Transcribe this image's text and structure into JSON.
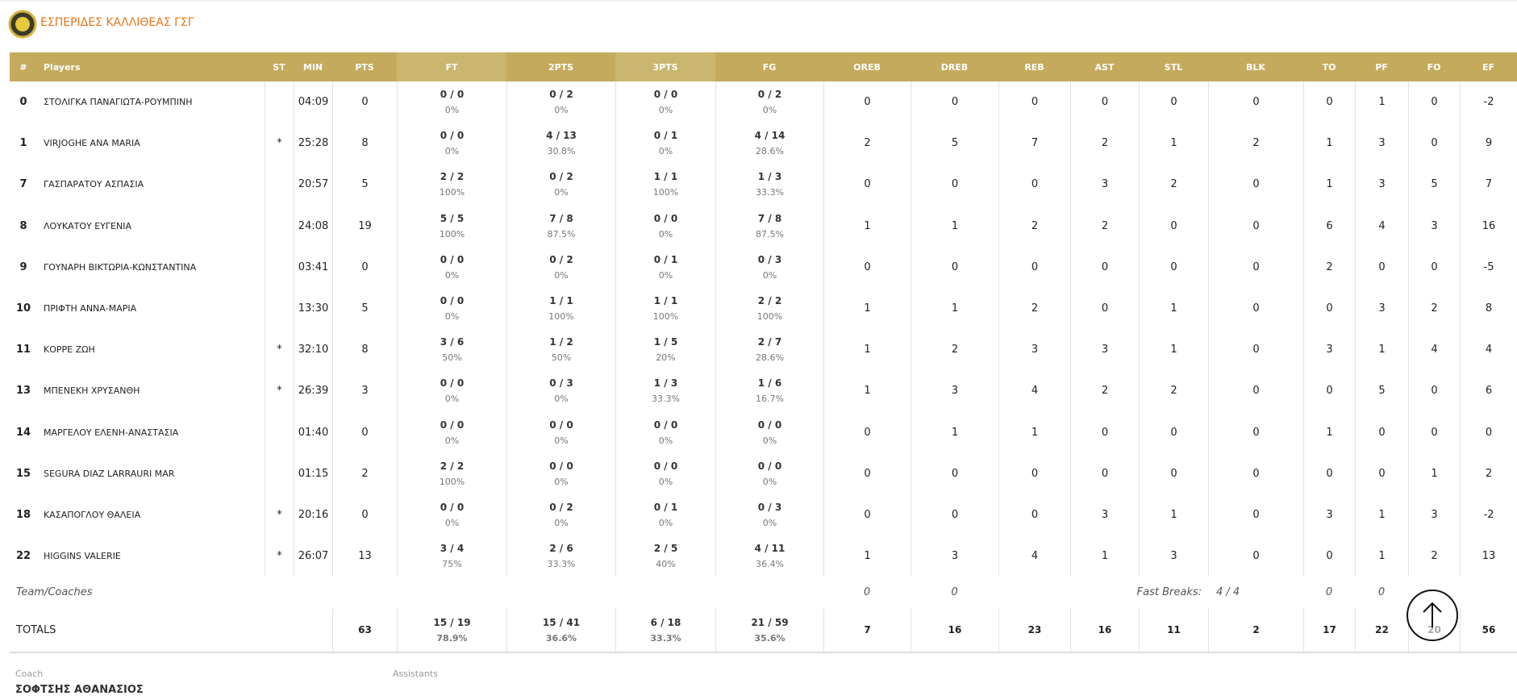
{
  "team": "ΕΣΠΕΡΙΔΕΣ ΚΑΛΛΙΘΕΑΣ ΓΣΓ",
  "table": {
    "header": [
      "#",
      "Players",
      "ST",
      "MIN",
      "PTS",
      "FT",
      "2PTS",
      "3PTS",
      "FG",
      "OREB",
      "DREB",
      "REB",
      "AST",
      "STL",
      "BLK",
      "TO",
      "PF",
      "FO",
      "EF"
    ],
    "rows": [
      [
        0,
        "ΣΤΟΛΙΓΚΑ ΠΑΝΑΓΙΩΤΑ-ΡΟΥΜΠΙΝΗ",
        null,
        "04:09",
        0,
        [
          "0 / 0",
          "0%"
        ],
        [
          "0 / 2",
          "0%"
        ],
        [
          "0 / 0",
          "0%"
        ],
        [
          "0 / 2",
          "0%"
        ],
        0,
        0,
        0,
        0,
        0,
        0,
        0,
        1,
        0,
        -2
      ],
      [
        1,
        "VIRJOGHE ANA MARIA",
        "*",
        "25:28",
        8,
        [
          "0 / 0",
          "0%"
        ],
        [
          "4 / 13",
          "30.8%"
        ],
        [
          "0 / 1",
          "0%"
        ],
        [
          "4 / 14",
          "28.6%"
        ],
        2,
        5,
        7,
        2,
        1,
        2,
        1,
        3,
        0,
        9
      ],
      [
        7,
        "ΓΑΣΠΑΡΑΤΟΥ ΑΣΠΑΣΙΑ",
        null,
        "20:57",
        5,
        [
          "2 / 2",
          "100%"
        ],
        [
          "0 / 2",
          "0%"
        ],
        [
          "1 / 1",
          "100%"
        ],
        [
          "1 / 3",
          "33.3%"
        ],
        0,
        0,
        0,
        3,
        2,
        0,
        1,
        3,
        5,
        7
      ],
      [
        8,
        "ΛΟΥΚΑΤΟΥ ΕΥΓΕΝΙΑ",
        null,
        "24:08",
        19,
        [
          "5 / 5",
          "100%"
        ],
        [
          "7 / 8",
          "87.5%"
        ],
        [
          "0 / 0",
          "0%"
        ],
        [
          "7 / 8",
          "87.5%"
        ],
        1,
        1,
        2,
        2,
        0,
        0,
        6,
        4,
        3,
        16
      ],
      [
        9,
        "ΓΟΥΝΑΡΗ ΒΙΚΤΩΡΙΑ-ΚΩΝΣΤΑΝΤΙΝΑ",
        null,
        "03:41",
        0,
        [
          "0 / 0",
          "0%"
        ],
        [
          "0 / 2",
          "0%"
        ],
        [
          "0 / 1",
          "0%"
        ],
        [
          "0 / 3",
          "0%"
        ],
        0,
        0,
        0,
        0,
        0,
        0,
        2,
        0,
        0,
        -5
      ],
      [
        10,
        "ΠΡΙΦΤΗ ΑΝΝΑ-ΜΑΡΙΑ",
        null,
        "13:30",
        5,
        [
          "0 / 0",
          "0%"
        ],
        [
          "1 / 1",
          "100%"
        ],
        [
          "1 / 1",
          "100%"
        ],
        [
          "2 / 2",
          "100%"
        ],
        1,
        1,
        2,
        0,
        1,
        0,
        0,
        3,
        2,
        8
      ],
      [
        11,
        "ΚΟΡΡΕ ΖΩΗ",
        "*",
        "32:10",
        8,
        [
          "3 / 6",
          "50%"
        ],
        [
          "1 / 2",
          "50%"
        ],
        [
          "1 / 5",
          "20%"
        ],
        [
          "2 / 7",
          "28.6%"
        ],
        1,
        2,
        3,
        3,
        1,
        0,
        3,
        1,
        4,
        4
      ],
      [
        13,
        "ΜΠΕΝΕΚΗ ΧΡΥΣΑΝΘΗ",
        "*",
        "26:39",
        3,
        [
          "0 / 0",
          "0%"
        ],
        [
          "0 / 3",
          "0%"
        ],
        [
          "1 / 3",
          "33.3%"
        ],
        [
          "1 / 6",
          "16.7%"
        ],
        1,
        3,
        4,
        2,
        2,
        0,
        0,
        5,
        0,
        6
      ],
      [
        14,
        "ΜΑΡΓΕΛΟΥ ΕΛΕΝΗ-ΑΝΑΣΤΑΣΙΑ",
        null,
        "01:40",
        0,
        [
          "0 / 0",
          "0%"
        ],
        [
          "0 / 0",
          "0%"
        ],
        [
          "0 / 0",
          "0%"
        ],
        [
          "0 / 0",
          "0%"
        ],
        0,
        1,
        1,
        0,
        0,
        0,
        1,
        0,
        0,
        0
      ],
      [
        15,
        "SEGURA DIAZ LARRAURI MAR",
        null,
        "01:15",
        2,
        [
          "2 / 2",
          "100%"
        ],
        [
          "0 / 0",
          "0%"
        ],
        [
          "0 / 0",
          "0%"
        ],
        [
          "0 / 0",
          "0%"
        ],
        0,
        0,
        0,
        0,
        0,
        0,
        0,
        0,
        1,
        2
      ],
      [
        18,
        "ΚΑΣΑΠΟΓΛΟΥ ΘΑΛΕΙΑ",
        "*",
        "20:16",
        0,
        [
          "0 / 0",
          "0%"
        ],
        [
          "0 / 2",
          "0%"
        ],
        [
          "0 / 1",
          "0%"
        ],
        [
          "0 / 3",
          "0%"
        ],
        0,
        0,
        0,
        3,
        1,
        0,
        3,
        1,
        3,
        -2
      ],
      [
        22,
        "HIGGINS VALERIE",
        "*",
        "26:07",
        13,
        [
          "3 / 4",
          "75%"
        ],
        [
          "2 / 6",
          "33.3%"
        ],
        [
          "2 / 5",
          "40%"
        ],
        [
          "4 / 11",
          "36.4%"
        ],
        1,
        3,
        4,
        1,
        3,
        0,
        0,
        1,
        2,
        13
      ]
    ],
    "team_row": {
      "label": "Team/Coaches",
      "oreb": 0,
      "dreb": 0,
      "fast_breaks_label": "Fast Breaks:",
      "fast_breaks": "4 / 4",
      "to": 0,
      "pf": 0
    },
    "totals": {
      "label": "TOTALS",
      "cells": [
        63,
        [
          "15 / 19",
          "78.9%"
        ],
        [
          "15 / 41",
          "36.6%"
        ],
        [
          "6 / 18",
          "33.3%"
        ],
        [
          "21 / 59",
          "35.6%"
        ],
        7,
        16,
        23,
        16,
        11,
        2,
        17,
        22,
        20,
        56
      ]
    }
  },
  "footer": {
    "coach_label": "Coach",
    "coach": "ΣΟΦΤΣΗΣ ΑΘΑΝΑΣΙΟΣ",
    "assistants_label": "Assistants"
  }
}
